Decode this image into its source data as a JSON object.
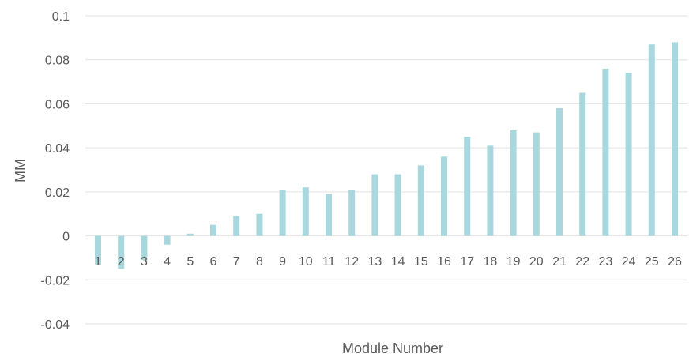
{
  "chart_data": {
    "type": "bar",
    "title": "",
    "xlabel": "Module Number",
    "ylabel": "MM",
    "categories": [
      "1",
      "2",
      "3",
      "4",
      "5",
      "6",
      "7",
      "8",
      "9",
      "10",
      "11",
      "12",
      "13",
      "14",
      "15",
      "16",
      "17",
      "18",
      "19",
      "20",
      "21",
      "22",
      "23",
      "24",
      "25",
      "26"
    ],
    "values": [
      -0.013,
      -0.015,
      -0.011,
      -0.004,
      0.001,
      0.005,
      0.009,
      0.01,
      0.021,
      0.022,
      0.019,
      0.021,
      0.028,
      0.028,
      0.032,
      0.036,
      0.045,
      0.041,
      0.048,
      0.047,
      0.058,
      0.065,
      0.076,
      0.074,
      0.087,
      0.088
    ],
    "ylim": [
      -0.04,
      0.1
    ],
    "yticks": [
      "0.1",
      "0.08",
      "0.06",
      "0.04",
      "0.02",
      "0",
      "-0.02",
      "-0.04"
    ],
    "ytick_values": [
      0.1,
      0.08,
      0.06,
      0.04,
      0.02,
      0,
      -0.02,
      -0.04
    ],
    "grid": true,
    "bar_color": "#a8d8dd",
    "grid_color": "#e3e3e3",
    "text_color": "#595959"
  }
}
